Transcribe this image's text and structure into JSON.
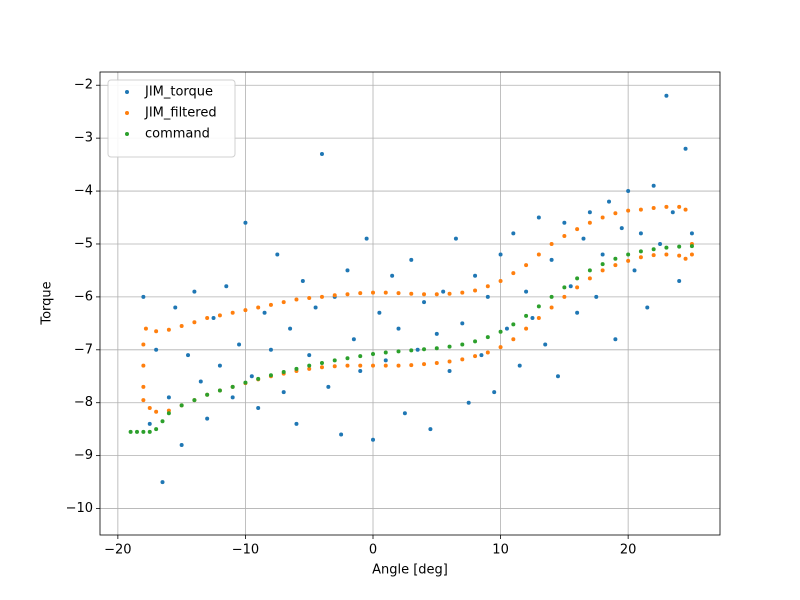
{
  "chart_data": {
    "type": "scatter",
    "xlabel": "Angle [deg]",
    "ylabel": "Torque",
    "xlim": [
      -21.4,
      27.2
    ],
    "ylim": [
      -10.5,
      -1.75
    ],
    "xticks": [
      {
        "value": -20,
        "label": "−20"
      },
      {
        "value": -10,
        "label": "−10"
      },
      0,
      10,
      20
    ],
    "yticks": [
      {
        "value": -10,
        "label": "−10"
      },
      {
        "value": -9,
        "label": "−9"
      },
      {
        "value": -8,
        "label": "−8"
      },
      {
        "value": -7,
        "label": "−7"
      },
      {
        "value": -6,
        "label": "−6"
      },
      {
        "value": -5,
        "label": "−5"
      },
      {
        "value": -4,
        "label": "−4"
      },
      {
        "value": -3,
        "label": "−3"
      },
      {
        "value": -2,
        "label": "−2"
      }
    ],
    "grid": true,
    "legend": "upper left",
    "series": [
      {
        "name": "JIM_torque",
        "color": "#1f77b4",
        "x": [
          -18,
          -17.5,
          -17,
          -16.5,
          -16,
          -15.5,
          -15,
          -14.5,
          -14,
          -13.5,
          -13,
          -12.5,
          -12,
          -11.5,
          -11,
          -10.5,
          -10,
          -9.5,
          -9,
          -8.5,
          -8,
          -7.5,
          -7,
          -6.5,
          -6,
          -5.5,
          -5,
          -4.5,
          -4,
          -3.5,
          -3,
          -2.5,
          -2,
          -1.5,
          -1,
          -0.5,
          0,
          0.5,
          1,
          1.5,
          2,
          2.5,
          3,
          3.5,
          4,
          4.5,
          5,
          5.5,
          6,
          6.5,
          7,
          7.5,
          8,
          8.5,
          9,
          9.5,
          10,
          10.5,
          11,
          11.5,
          12,
          12.5,
          13,
          13.5,
          14,
          14.5,
          15,
          15.5,
          16,
          16.5,
          17,
          17.5,
          18,
          18.5,
          19,
          19.5,
          20,
          20.5,
          21,
          21.5,
          22,
          22.5,
          23,
          23.5,
          24,
          24.5,
          25
        ],
        "values": [
          -6.0,
          -8.4,
          -7.0,
          -9.5,
          -7.9,
          -6.2,
          -8.8,
          -7.1,
          -5.9,
          -7.6,
          -8.3,
          -6.4,
          -7.3,
          -5.8,
          -7.9,
          -6.9,
          -4.6,
          -7.5,
          -8.1,
          -6.3,
          -7.0,
          -5.2,
          -7.8,
          -6.6,
          -8.4,
          -5.7,
          -7.1,
          -6.2,
          -3.3,
          -7.7,
          -6.0,
          -8.6,
          -5.5,
          -6.8,
          -7.4,
          -4.9,
          -8.7,
          -6.3,
          -7.2,
          -5.6,
          -6.6,
          -8.2,
          -5.3,
          -7.0,
          -6.1,
          -8.5,
          -6.7,
          -5.9,
          -7.4,
          -4.9,
          -6.5,
          -8.0,
          -5.6,
          -7.1,
          -6.0,
          -7.8,
          -5.2,
          -6.6,
          -4.8,
          -7.3,
          -5.9,
          -6.4,
          -4.5,
          -6.9,
          -5.3,
          -7.5,
          -4.6,
          -5.8,
          -6.3,
          -4.9,
          -4.4,
          -6.0,
          -5.2,
          -4.2,
          -6.8,
          -4.7,
          -4.0,
          -5.5,
          -4.8,
          -6.2,
          -3.9,
          -5.0,
          -2.2,
          -4.4,
          -5.7,
          -3.2,
          -4.8
        ]
      },
      {
        "name": "JIM_filtered",
        "color": "#ff7f0e",
        "x": [
          25,
          24.5,
          24,
          23,
          22,
          21,
          20,
          19,
          18,
          17,
          16,
          15,
          14,
          13,
          12,
          11,
          10,
          9,
          8,
          7,
          6,
          5,
          4,
          3,
          2,
          1,
          0,
          -1,
          -2,
          -3,
          -4,
          -5,
          -6,
          -7,
          -8,
          -9,
          -10,
          -11,
          -12,
          -13,
          -14,
          -15,
          -16,
          -17,
          -17.8,
          -18,
          -18,
          -18,
          -18,
          -17.5,
          -17,
          -16,
          -15,
          -14,
          -13,
          -12,
          -11,
          -10,
          -9,
          -8,
          -7,
          -6,
          -5,
          -4,
          -3,
          -2,
          -1,
          0,
          1,
          2,
          3,
          4,
          5,
          6,
          7,
          8,
          9,
          10,
          11,
          12,
          13,
          14,
          15,
          16,
          17,
          18,
          19,
          20,
          21,
          22,
          23,
          24,
          24.5,
          25
        ],
        "values": [
          -5.0,
          -4.35,
          -4.3,
          -4.3,
          -4.32,
          -4.35,
          -4.37,
          -4.42,
          -4.5,
          -4.6,
          -4.72,
          -4.85,
          -5.0,
          -5.2,
          -5.4,
          -5.55,
          -5.7,
          -5.8,
          -5.88,
          -5.92,
          -5.94,
          -5.95,
          -5.95,
          -5.94,
          -5.93,
          -5.92,
          -5.92,
          -5.93,
          -5.95,
          -5.97,
          -6.0,
          -6.02,
          -6.05,
          -6.1,
          -6.15,
          -6.2,
          -6.25,
          -6.3,
          -6.35,
          -6.4,
          -6.48,
          -6.55,
          -6.62,
          -6.65,
          -6.6,
          -6.9,
          -7.3,
          -7.7,
          -7.95,
          -8.1,
          -8.17,
          -8.15,
          -8.05,
          -7.95,
          -7.85,
          -7.77,
          -7.7,
          -7.63,
          -7.56,
          -7.5,
          -7.45,
          -7.4,
          -7.36,
          -7.33,
          -7.31,
          -7.3,
          -7.3,
          -7.3,
          -7.3,
          -7.3,
          -7.29,
          -7.27,
          -7.25,
          -7.22,
          -7.18,
          -7.12,
          -7.05,
          -6.95,
          -6.8,
          -6.6,
          -6.4,
          -6.2,
          -6.0,
          -5.82,
          -5.65,
          -5.5,
          -5.4,
          -5.32,
          -5.25,
          -5.21,
          -5.2,
          -5.22,
          -5.28,
          -5.2
        ]
      },
      {
        "name": "command",
        "color": "#2ca02c",
        "x": [
          -19,
          -18.5,
          -18,
          -17.5,
          -17,
          -16.5,
          -16,
          -15,
          -14,
          -13,
          -12,
          -11,
          -10,
          -9,
          -8,
          -7,
          -6,
          -5,
          -4,
          -3,
          -2,
          -1,
          0,
          1,
          2,
          3,
          4,
          5,
          6,
          7,
          8,
          9,
          10,
          11,
          12,
          13,
          14,
          15,
          16,
          17,
          18,
          19,
          20,
          21,
          22,
          23,
          24,
          25
        ],
        "values": [
          -8.55,
          -8.55,
          -8.55,
          -8.55,
          -8.5,
          -8.35,
          -8.2,
          -8.05,
          -7.95,
          -7.85,
          -7.77,
          -7.7,
          -7.62,
          -7.55,
          -7.48,
          -7.42,
          -7.36,
          -7.3,
          -7.25,
          -7.2,
          -7.16,
          -7.12,
          -7.08,
          -7.05,
          -7.03,
          -7.01,
          -6.99,
          -6.97,
          -6.94,
          -6.9,
          -6.84,
          -6.76,
          -6.66,
          -6.52,
          -6.36,
          -6.18,
          -6.0,
          -5.82,
          -5.65,
          -5.5,
          -5.38,
          -5.28,
          -5.2,
          -5.14,
          -5.1,
          -5.07,
          -5.05,
          -5.04
        ]
      }
    ]
  }
}
